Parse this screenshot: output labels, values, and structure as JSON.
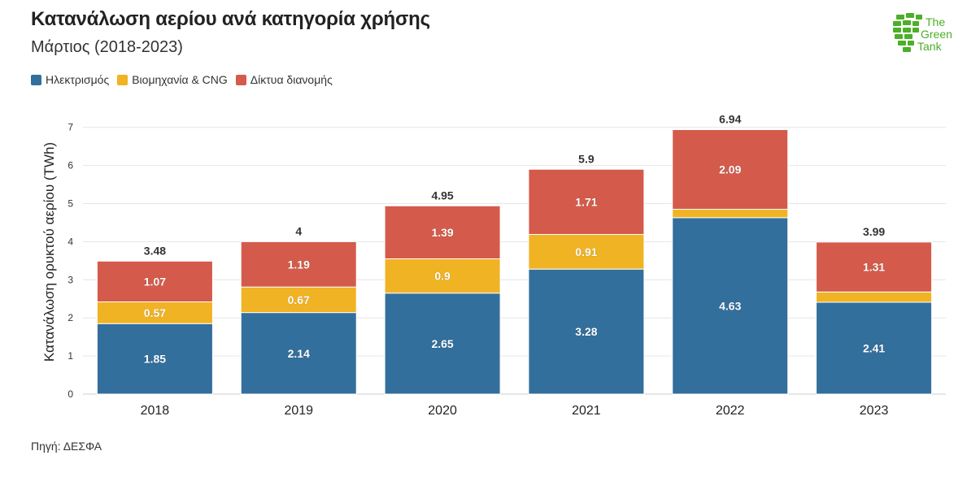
{
  "title": "Κατανάλωση αερίου ανά κατηγορία χρήσης",
  "subtitle": "Μάρτιος (2018-2023)",
  "source": "Πηγή: ΔΕΣΦΑ",
  "logo": {
    "line1": "The",
    "line2": "Green",
    "line3": "Tank"
  },
  "colors": {
    "electricity": "#336f9c",
    "industry": "#f0b323",
    "distribution": "#d45b4b",
    "logo": "#4caf28"
  },
  "chart_data": {
    "type": "bar",
    "stacked": true,
    "categories": [
      "2018",
      "2019",
      "2020",
      "2021",
      "2022",
      "2023"
    ],
    "series": [
      {
        "name": "Ηλεκτρισμός",
        "color": "#336f9c",
        "values": [
          1.85,
          2.14,
          2.65,
          3.28,
          4.63,
          2.41
        ],
        "labels": [
          "1.85",
          "2.14",
          "2.65",
          "3.28",
          "4.63",
          "2.41"
        ]
      },
      {
        "name": "Βιομηχανία & CNG",
        "color": "#f0b323",
        "values": [
          0.57,
          0.67,
          0.9,
          0.91,
          0.22,
          0.27
        ],
        "labels": [
          "0.57",
          "0.67",
          "0.9",
          "0.91",
          "",
          ""
        ]
      },
      {
        "name": "Δίκτυα διανομής",
        "color": "#d45b4b",
        "values": [
          1.07,
          1.19,
          1.39,
          1.71,
          2.09,
          1.31
        ],
        "labels": [
          "1.07",
          "1.19",
          "1.39",
          "1.71",
          "2.09",
          "1.31"
        ]
      }
    ],
    "totals": [
      "3.48",
      "4",
      "4.95",
      "5.9",
      "6.94",
      "3.99"
    ],
    "ylabel": "Κατανάλωση ορυκτού αερίου (TWh)",
    "xlabel": "",
    "ylim": [
      0,
      7
    ],
    "yticks": [
      "0",
      "1",
      "2",
      "3",
      "4",
      "5",
      "6",
      "7"
    ],
    "grid": true,
    "legend_position": "top-left"
  }
}
